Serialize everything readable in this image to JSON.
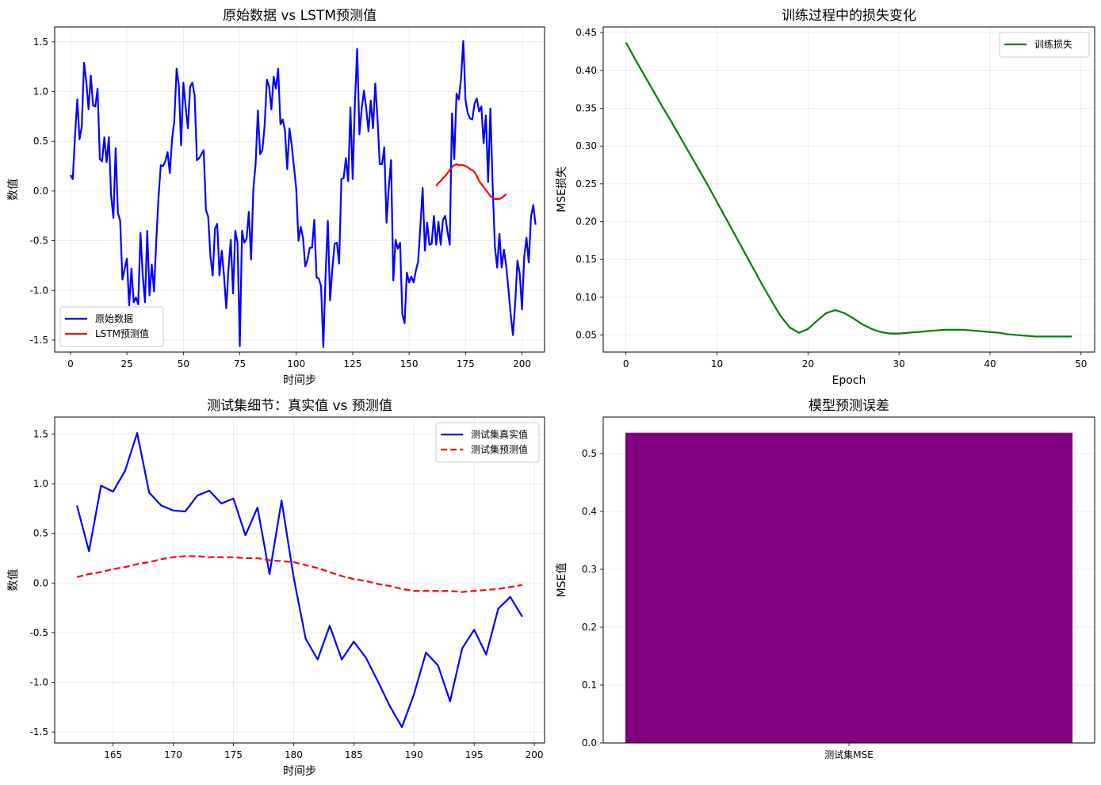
{
  "figure": {
    "background": "#ffffff"
  },
  "chart_data": [
    {
      "id": "p1",
      "type": "line",
      "title": "原始数据 vs LSTM预测值",
      "xlabel": "时间步",
      "ylabel": "数值",
      "xlim": [
        -7,
        210
      ],
      "ylim": [
        -1.62,
        1.65
      ],
      "xticks": [
        0,
        25,
        50,
        75,
        100,
        125,
        150,
        175,
        200
      ],
      "yticks": [
        -1.5,
        -1.0,
        -0.5,
        0.0,
        0.5,
        1.0,
        1.5
      ],
      "ytick_labels": [
        "-1.5",
        "-1.0",
        "-0.5",
        "0.0",
        "0.5",
        "1.0",
        "1.5"
      ],
      "grid": true,
      "legend": "lower-left",
      "series": [
        {
          "name": "原始数据",
          "color": "#0000ff",
          "x0": 0,
          "values": [
            0.16,
            0.12,
            0.55,
            0.92,
            0.52,
            0.65,
            1.29,
            1.1,
            0.82,
            1.16,
            0.86,
            0.85,
            1.03,
            0.32,
            0.3,
            0.54,
            0.29,
            0.54,
            -0.05,
            -0.27,
            0.43,
            -0.22,
            -0.3,
            -0.89,
            -0.78,
            -0.68,
            -1.15,
            -0.78,
            -1.12,
            -1.07,
            -1.14,
            -0.42,
            -0.85,
            -1.12,
            -0.4,
            -1.05,
            -0.74,
            -1.01,
            -0.5,
            -0.06,
            0.26,
            0.25,
            0.3,
            0.39,
            0.18,
            0.52,
            0.71,
            1.23,
            1.06,
            0.46,
            1.09,
            0.85,
            0.63,
            1.05,
            1.09,
            0.96,
            0.31,
            0.33,
            0.37,
            0.41,
            -0.19,
            -0.26,
            -0.66,
            -0.85,
            -0.38,
            -0.33,
            -0.85,
            -0.6,
            -0.85,
            -1.18,
            -0.78,
            -0.49,
            -1.03,
            -0.4,
            -0.52,
            -1.56,
            -0.4,
            -0.52,
            -0.48,
            -0.21,
            -0.69,
            0.02,
            0.27,
            0.81,
            0.37,
            0.41,
            0.66,
            1.12,
            1.05,
            0.82,
            1.15,
            1.03,
            1.23,
            0.67,
            0.72,
            0.61,
            0.22,
            0.63,
            0.46,
            0.24,
            0.02,
            -0.5,
            -0.36,
            -0.47,
            -0.76,
            -0.69,
            -0.57,
            -0.57,
            -0.29,
            -0.87,
            -0.88,
            -0.96,
            -1.57,
            -0.84,
            -0.3,
            -1.1,
            -0.78,
            -0.53,
            -0.52,
            -0.73,
            0.12,
            0.13,
            0.33,
            0.1,
            0.84,
            0.12,
            0.89,
            1.43,
            0.57,
            0.83,
            1.01,
            0.83,
            0.6,
            0.91,
            0.63,
            1.08,
            0.73,
            0.27,
            0.27,
            0.44,
            -0.32,
            0.04,
            0.31,
            -0.9,
            -0.49,
            -0.58,
            -0.52,
            -1.24,
            -1.33,
            -0.82,
            -0.92,
            -0.86,
            -0.92,
            -0.8,
            -0.71,
            -0.35,
            0.03,
            -0.6,
            -0.32,
            -0.54,
            -0.53,
            -0.25,
            -0.54,
            -0.31,
            -0.54,
            -0.29,
            -0.25,
            -0.41,
            -0.54,
            0.78,
            0.32,
            0.98,
            0.92,
            1.13,
            1.51,
            0.91,
            0.78,
            0.73,
            0.72,
            0.88,
            0.93,
            0.8,
            0.85,
            0.48,
            0.76,
            0.09,
            0.83,
            0.06,
            -0.56,
            -0.77,
            -0.43,
            -0.77,
            -0.59,
            -0.75,
            -0.99,
            -1.24,
            -1.45,
            -1.12,
            -0.7,
            -0.83,
            -1.19,
            -0.66,
            -0.47,
            -0.72,
            -0.26,
            -0.14,
            -0.34
          ]
        },
        {
          "name": "LSTM预测值",
          "color": "#ff0000",
          "x0": 162,
          "values": [
            0.05,
            0.08,
            0.1,
            0.13,
            0.15,
            0.18,
            0.21,
            0.24,
            0.26,
            0.27,
            0.26,
            0.26,
            0.26,
            0.25,
            0.24,
            0.22,
            0.21,
            0.19,
            0.15,
            0.1,
            0.07,
            0.04,
            0.01,
            -0.02,
            -0.05,
            -0.07,
            -0.08,
            -0.08,
            -0.08,
            -0.07,
            -0.05,
            -0.03
          ]
        }
      ]
    },
    {
      "id": "p2",
      "type": "line",
      "title": "训练过程中的损失变化",
      "xlabel": "Epoch",
      "ylabel": "MSE损失",
      "xlim": [
        -2.5,
        51.5
      ],
      "ylim": [
        0.0275,
        0.4575
      ],
      "xticks": [
        0,
        10,
        20,
        30,
        40,
        50
      ],
      "yticks": [
        0.05,
        0.1,
        0.15,
        0.2,
        0.25,
        0.3,
        0.35,
        0.4,
        0.45
      ],
      "ytick_labels": [
        "0.05",
        "0.10",
        "0.15",
        "0.20",
        "0.25",
        "0.30",
        "0.35",
        "0.40",
        "0.45"
      ],
      "grid": true,
      "legend": "upper-right",
      "series": [
        {
          "name": "训练损失",
          "color": "#008000",
          "x0": 0,
          "values": [
            0.437,
            0.415,
            0.394,
            0.373,
            0.352,
            0.332,
            0.311,
            0.29,
            0.269,
            0.248,
            0.226,
            0.204,
            0.182,
            0.16,
            0.138,
            0.116,
            0.095,
            0.075,
            0.06,
            0.053,
            0.058,
            0.069,
            0.079,
            0.083,
            0.079,
            0.072,
            0.064,
            0.058,
            0.054,
            0.052,
            0.052,
            0.053,
            0.054,
            0.055,
            0.056,
            0.057,
            0.057,
            0.057,
            0.056,
            0.055,
            0.054,
            0.053,
            0.051,
            0.05,
            0.049,
            0.048,
            0.048,
            0.048,
            0.048,
            0.048
          ]
        }
      ]
    },
    {
      "id": "p3",
      "type": "line",
      "title": "测试集细节：真实值 vs 预测值",
      "xlabel": "时间步",
      "ylabel": "数值",
      "xlim": [
        160.15,
        200.85
      ],
      "ylim": [
        -1.61,
        1.67
      ],
      "xticks": [
        165,
        170,
        175,
        180,
        185,
        190,
        195,
        200
      ],
      "yticks": [
        -1.5,
        -1.0,
        -0.5,
        0.0,
        0.5,
        1.0,
        1.5
      ],
      "ytick_labels": [
        "-1.5",
        "-1.0",
        "-0.5",
        "0.0",
        "0.5",
        "1.0",
        "1.5"
      ],
      "grid": true,
      "legend": "upper-right",
      "series": [
        {
          "name": "测试集真实值",
          "color": "#0000ff",
          "dash": false,
          "x0": 162,
          "values": [
            0.78,
            0.32,
            0.98,
            0.92,
            1.13,
            1.51,
            0.91,
            0.78,
            0.73,
            0.72,
            0.88,
            0.93,
            0.8,
            0.85,
            0.48,
            0.76,
            0.09,
            0.83,
            0.06,
            -0.56,
            -0.77,
            -0.43,
            -0.77,
            -0.59,
            -0.75,
            -0.99,
            -1.24,
            -1.45,
            -1.12,
            -0.7,
            -0.83,
            -1.19,
            -0.66,
            -0.47,
            -0.72,
            -0.26,
            -0.14,
            -0.34
          ]
        },
        {
          "name": "测试集预测值",
          "color": "#ff0000",
          "dash": true,
          "x0": 162,
          "values": [
            0.06,
            0.09,
            0.11,
            0.14,
            0.16,
            0.19,
            0.21,
            0.24,
            0.26,
            0.27,
            0.27,
            0.26,
            0.26,
            0.26,
            0.25,
            0.25,
            0.23,
            0.22,
            0.21,
            0.18,
            0.15,
            0.11,
            0.07,
            0.04,
            0.02,
            -0.01,
            -0.03,
            -0.06,
            -0.08,
            -0.08,
            -0.08,
            -0.08,
            -0.09,
            -0.08,
            -0.07,
            -0.06,
            -0.04,
            -0.02
          ]
        }
      ]
    },
    {
      "id": "p4",
      "type": "bar",
      "title": "模型预测误差",
      "xlabel": "",
      "ylabel": "MSE值",
      "categories": [
        "测试集MSE"
      ],
      "values": [
        0.536
      ],
      "color": "#800080",
      "ylim": [
        0,
        0.563
      ],
      "yticks": [
        0.0,
        0.1,
        0.2,
        0.3,
        0.4,
        0.5
      ],
      "ytick_labels": [
        "0.0",
        "0.1",
        "0.2",
        "0.3",
        "0.4",
        "0.5"
      ],
      "grid": true
    }
  ]
}
